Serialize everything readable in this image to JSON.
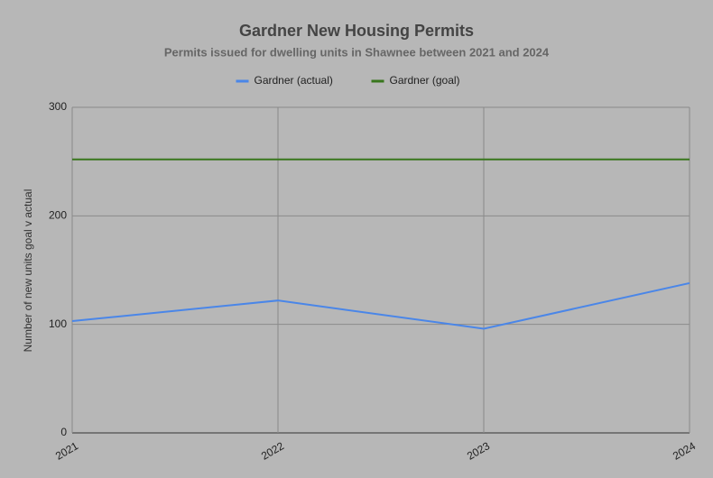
{
  "chart_data": {
    "type": "line",
    "title": "Gardner New Housing Permits",
    "subtitle": "Permits issued for dwelling units in Shawnee between 2021 and 2024",
    "y_label": "Number of new units goal v actual",
    "x": [
      2021,
      2022,
      2023,
      2024
    ],
    "series": [
      {
        "name": "Gardner (actual)",
        "color": "#4a86e8",
        "values": [
          103,
          122,
          96,
          138
        ]
      },
      {
        "name": "Gardner (goal)",
        "color": "#38761d",
        "values": [
          252,
          252,
          252,
          252
        ]
      }
    ],
    "xlim": [
      2021,
      2024
    ],
    "xticks": [
      2021,
      2022,
      2023,
      2024
    ],
    "ylim": [
      0,
      300
    ],
    "yticks": [
      0,
      100,
      200,
      300
    ],
    "grid": true,
    "legend": "top"
  }
}
